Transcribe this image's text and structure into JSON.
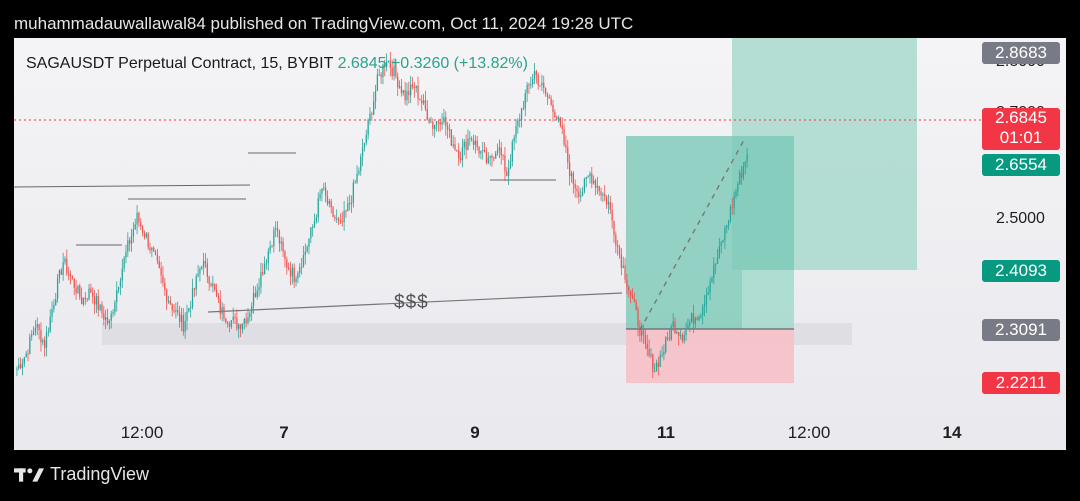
{
  "header": {
    "publish_text": "muhammadauwallawal84 published on TradingView.com, Oct 11, 2024 19:28 UTC"
  },
  "footer": {
    "brand": "TradingView",
    "logo_icon": "tradingview-logo-icon"
  },
  "symbol": {
    "name": "SAGAUSDT Perpetual Contract, 15, BYBIT",
    "last": "2.6845",
    "change": "+0.3260 (+13.82%)"
  },
  "colors": {
    "up": "#26a69a",
    "down": "#ef5350",
    "target_zone": "#7cc9b8",
    "stop_zone": "#f6c1c6",
    "tag_gray": "#787b86",
    "tag_green": "#089981",
    "tag_red": "#f23645"
  },
  "price_tags": [
    {
      "value": "2.8683",
      "color_key": "tag_gray"
    },
    {
      "value": "2.6845",
      "sub": "01:01",
      "color_key": "tag_red"
    },
    {
      "value": "2.6554",
      "color_key": "tag_green"
    },
    {
      "value": "2.4093",
      "color_key": "tag_green"
    },
    {
      "value": "2.3091",
      "color_key": "tag_gray"
    },
    {
      "value": "2.2211",
      "color_key": "tag_red"
    }
  ],
  "axis_labels": [
    "2.8000",
    "2.7000",
    "2.5000"
  ],
  "annotation": {
    "text": "$$$"
  },
  "chart_data": {
    "type": "candlestick",
    "x_ticks": [
      {
        "label": "12:00",
        "bold": false,
        "t": 0.12
      },
      {
        "label": "7",
        "bold": true,
        "t": 0.255
      },
      {
        "label": "9",
        "bold": true,
        "t": 0.437
      },
      {
        "label": "11",
        "bold": true,
        "t": 0.619
      },
      {
        "label": "12:00",
        "bold": false,
        "t": 0.755
      },
      {
        "label": "14",
        "bold": true,
        "t": 0.892
      }
    ],
    "y_range": [
      2.15,
      2.92
    ],
    "approx_closes": [
      2.24,
      2.27,
      2.33,
      2.29,
      2.38,
      2.46,
      2.42,
      2.38,
      2.4,
      2.36,
      2.33,
      2.42,
      2.49,
      2.55,
      2.51,
      2.46,
      2.4,
      2.36,
      2.33,
      2.39,
      2.46,
      2.42,
      2.36,
      2.34,
      2.33,
      2.35,
      2.41,
      2.47,
      2.53,
      2.46,
      2.43,
      2.47,
      2.53,
      2.61,
      2.56,
      2.53,
      2.58,
      2.65,
      2.74,
      2.83,
      2.88,
      2.84,
      2.8,
      2.82,
      2.78,
      2.74,
      2.76,
      2.71,
      2.68,
      2.72,
      2.69,
      2.66,
      2.7,
      2.64,
      2.73,
      2.8,
      2.85,
      2.81,
      2.78,
      2.72,
      2.63,
      2.6,
      2.64,
      2.61,
      2.58,
      2.49,
      2.42,
      2.35,
      2.28,
      2.24,
      2.28,
      2.33,
      2.31,
      2.34,
      2.36,
      2.42,
      2.48,
      2.55,
      2.62,
      2.68
    ]
  }
}
